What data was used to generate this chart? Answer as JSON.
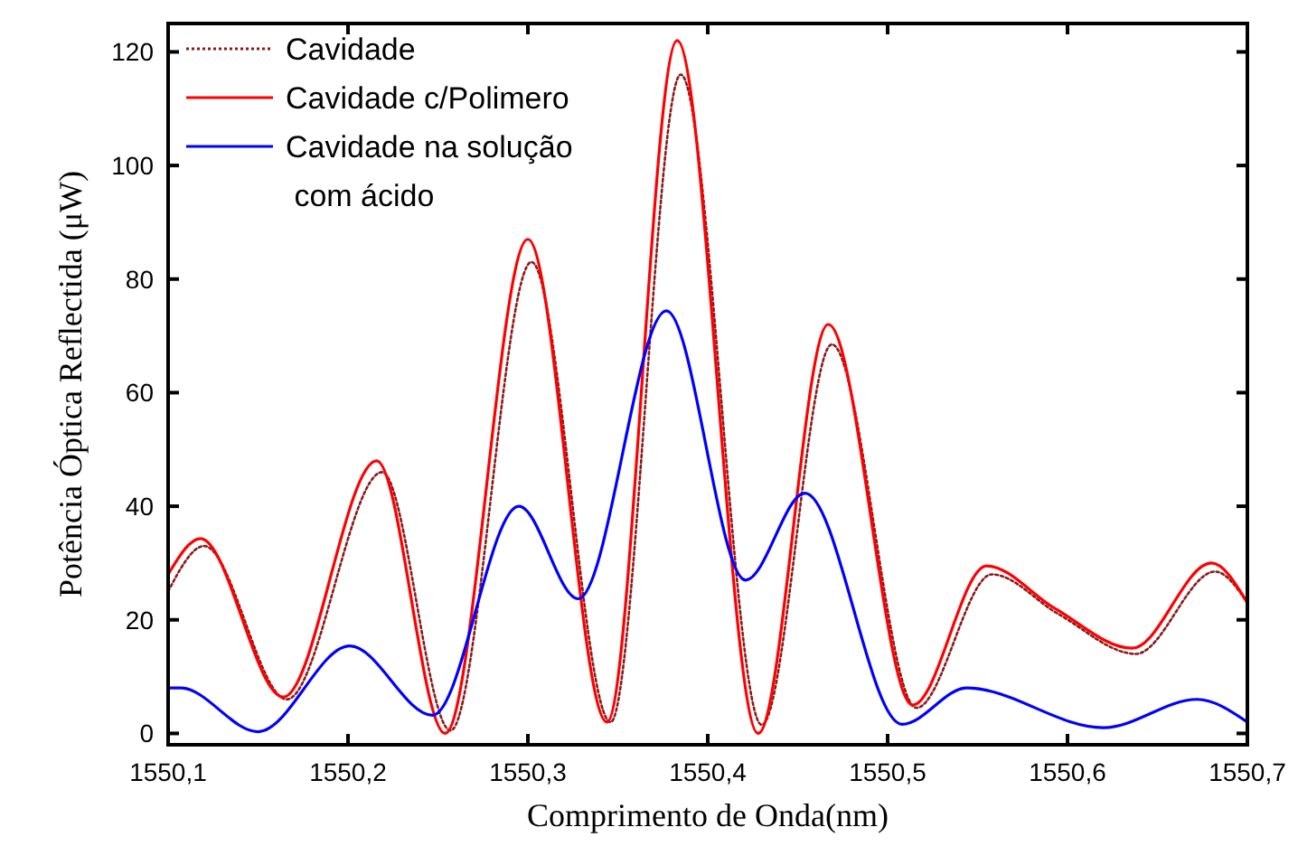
{
  "chart_data": {
    "type": "line",
    "xlabel": "Comprimento de Onda(nm)",
    "ylabel": "Potência Óptica Reflectida (μW)",
    "xlim": [
      1550.1,
      1550.7
    ],
    "xticks": [
      {
        "value": 1550.1,
        "label": "1550,1"
      },
      {
        "value": 1550.2,
        "label": "1550,2"
      },
      {
        "value": 1550.3,
        "label": "1550,3"
      },
      {
        "value": 1550.4,
        "label": "1550,4"
      },
      {
        "value": 1550.5,
        "label": "1550,5"
      },
      {
        "value": 1550.6,
        "label": "1550,6"
      },
      {
        "value": 1550.7,
        "label": "1550,7"
      }
    ],
    "ylim": [
      -2,
      125
    ],
    "yticks": [
      0,
      20,
      40,
      60,
      80,
      100,
      120
    ],
    "grid": false,
    "legend": "top left",
    "series": [
      {
        "name": "Cavidade",
        "color": "#8b1a1a",
        "line_style": "dotted",
        "x": [
          1550.1,
          1550.12,
          1550.166,
          1550.219,
          1550.257,
          1550.302,
          1550.346,
          1550.385,
          1550.43,
          1550.469,
          1550.516,
          1550.558,
          1550.595,
          1550.638,
          1550.682,
          1550.7
        ],
        "values": [
          25,
          33,
          6,
          46,
          0.5,
          83,
          2,
          116,
          1.5,
          68.5,
          4.5,
          28,
          21,
          14,
          28.5,
          23
        ]
      },
      {
        "name": "Cavidade c/Polimero",
        "color": "#ff0000",
        "line_style": "solid",
        "x": [
          1550.1,
          1550.118,
          1550.164,
          1550.216,
          1550.254,
          1550.3,
          1550.344,
          1550.383,
          1550.428,
          1550.467,
          1550.514,
          1550.555,
          1550.593,
          1550.636,
          1550.68,
          1550.7
        ],
        "values": [
          28,
          34.3,
          6.4,
          48,
          0,
          87,
          2,
          122,
          0,
          72,
          5,
          29.5,
          22,
          15,
          30,
          23
        ]
      },
      {
        "name": "Cavidade na solução\n com ácido",
        "color": "#0000ff",
        "line_style": "solid",
        "x": [
          1550.1,
          1550.107,
          1550.15,
          1550.201,
          1550.247,
          1550.295,
          1550.328,
          1550.377,
          1550.421,
          1550.454,
          1550.508,
          1550.544,
          1550.62,
          1550.672,
          1550.7
        ],
        "values": [
          8,
          8,
          0.3,
          15.4,
          3.2,
          40,
          23.7,
          74.4,
          27,
          42.3,
          1.6,
          8,
          1,
          6,
          2
        ]
      }
    ]
  }
}
